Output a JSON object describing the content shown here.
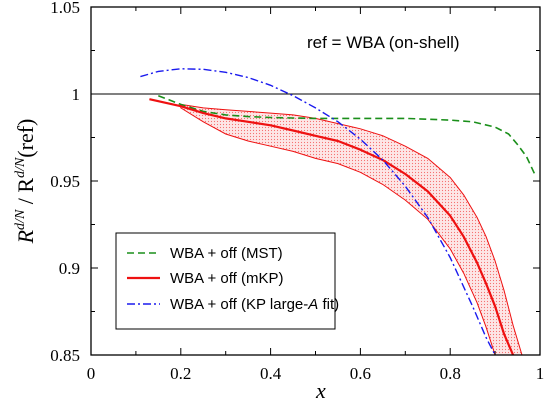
{
  "chart_data": {
    "type": "line",
    "annotation": "ref = WBA (on-shell)",
    "xlabel": "x",
    "ylabel": {
      "main": "R",
      "sup": "d/N",
      "mid": " / R",
      "sup2": "d/N",
      "tail": "(ref)"
    },
    "xlim": [
      0,
      1
    ],
    "ylim": [
      0.85,
      1.05
    ],
    "x_ticks": [
      "0",
      "0.2",
      "0.4",
      "0.6",
      "0.8",
      "1"
    ],
    "y_ticks": [
      "0.85",
      "0.9",
      "0.95",
      "1",
      "1.05"
    ],
    "x_tick_values": [
      0,
      0.2,
      0.4,
      0.6,
      0.8,
      1.0
    ],
    "y_tick_values": [
      0.85,
      0.9,
      0.95,
      1.0,
      1.05
    ],
    "reference_line": 1.0,
    "legend_position": "bottom-left",
    "series": [
      {
        "name": "WBA + off (MST)",
        "color": "#1a8f1a",
        "style": "dashed",
        "x": [
          0.15,
          0.2,
          0.25,
          0.3,
          0.35,
          0.4,
          0.45,
          0.5,
          0.55,
          0.6,
          0.65,
          0.7,
          0.75,
          0.8,
          0.85,
          0.9,
          0.93,
          0.95,
          0.97,
          0.99
        ],
        "y": [
          0.999,
          0.994,
          0.99,
          0.988,
          0.987,
          0.9865,
          0.9862,
          0.986,
          0.986,
          0.986,
          0.986,
          0.986,
          0.9855,
          0.985,
          0.984,
          0.981,
          0.977,
          0.971,
          0.964,
          0.953
        ]
      },
      {
        "name": "WBA + off (mKP)",
        "color": "#ee1111",
        "style": "solid",
        "x": [
          0.13,
          0.2,
          0.25,
          0.3,
          0.35,
          0.4,
          0.45,
          0.5,
          0.55,
          0.6,
          0.65,
          0.7,
          0.75,
          0.8,
          0.83,
          0.86,
          0.88,
          0.9,
          0.92,
          0.94,
          0.95
        ],
        "y": [
          0.997,
          0.993,
          0.989,
          0.986,
          0.984,
          0.982,
          0.979,
          0.976,
          0.973,
          0.968,
          0.962,
          0.954,
          0.944,
          0.93,
          0.918,
          0.903,
          0.891,
          0.878,
          0.862,
          0.85,
          0.848
        ]
      },
      {
        "name": "WBA + off (KP large-A fit)",
        "legend_parts": [
          "WBA + off (KP large-",
          "A",
          " fit)"
        ],
        "color": "#1a1aee",
        "style": "dashdot",
        "x": [
          0.11,
          0.15,
          0.2,
          0.25,
          0.3,
          0.35,
          0.4,
          0.45,
          0.5,
          0.55,
          0.6,
          0.65,
          0.7,
          0.75,
          0.8,
          0.85,
          0.88,
          0.9
        ],
        "y": [
          1.01,
          1.013,
          1.0145,
          1.0142,
          1.0125,
          1.0095,
          1.005,
          0.999,
          0.992,
          0.984,
          0.974,
          0.962,
          0.947,
          0.929,
          0.906,
          0.878,
          0.86,
          0.85
        ]
      }
    ],
    "band": {
      "color": "#ee1111",
      "x": [
        0.2,
        0.25,
        0.3,
        0.35,
        0.4,
        0.45,
        0.5,
        0.55,
        0.6,
        0.65,
        0.7,
        0.75,
        0.8,
        0.83,
        0.86,
        0.88,
        0.9,
        0.92,
        0.94,
        0.96,
        0.97
      ],
      "upper": [
        0.994,
        0.992,
        0.991,
        0.99,
        0.989,
        0.988,
        0.986,
        0.983,
        0.98,
        0.976,
        0.97,
        0.963,
        0.952,
        0.942,
        0.929,
        0.918,
        0.904,
        0.887,
        0.867,
        0.85,
        0.845
      ],
      "lower": [
        0.992,
        0.984,
        0.977,
        0.973,
        0.97,
        0.967,
        0.963,
        0.96,
        0.955,
        0.948,
        0.939,
        0.928,
        0.911,
        0.897,
        0.88,
        0.866,
        0.85,
        0.845,
        0.845,
        0.845,
        0.845
      ]
    }
  }
}
